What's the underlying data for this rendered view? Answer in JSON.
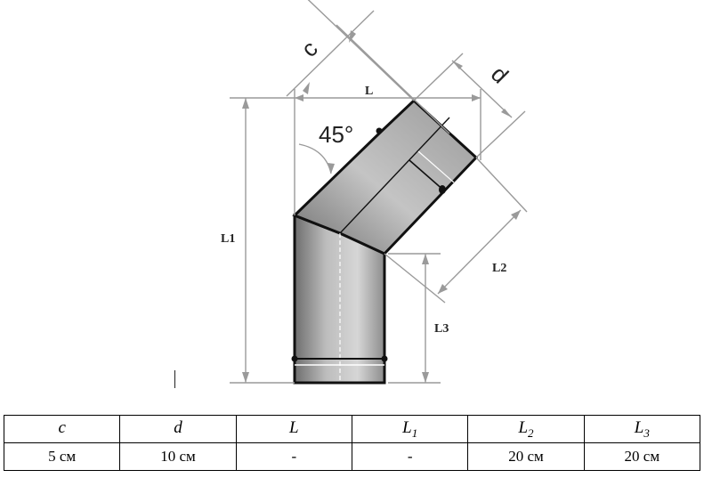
{
  "diagram": {
    "angle_label": "45°",
    "dim_labels": {
      "L": "L",
      "L1": "L1",
      "L2": "L2",
      "L3": "L3",
      "c": "c",
      "d": "d"
    }
  },
  "table": {
    "headers": [
      {
        "base": "c",
        "sub": ""
      },
      {
        "base": "d",
        "sub": ""
      },
      {
        "base": "L",
        "sub": ""
      },
      {
        "base": "L",
        "sub": "1"
      },
      {
        "base": "L",
        "sub": "2"
      },
      {
        "base": "L",
        "sub": "3"
      }
    ],
    "values": [
      "5 см",
      "10 см",
      "-",
      "-",
      "20 см",
      "20 см"
    ]
  }
}
